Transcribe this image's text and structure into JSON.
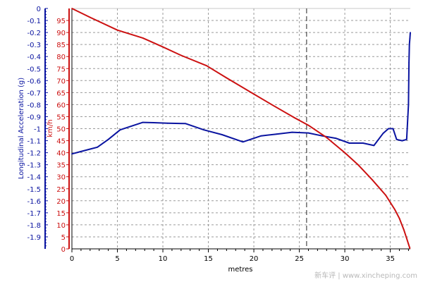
{
  "chart_data": {
    "type": "line",
    "xlabel": "metres",
    "x_ticks": [
      "0",
      "5",
      "10",
      "15",
      "20",
      "25",
      "30",
      "35"
    ],
    "xlim": [
      0,
      37.2
    ],
    "left_axis": {
      "label": "Longitudinal Acceleration (g)",
      "ylim": [
        -2.0,
        0
      ],
      "ticks": [
        "0",
        "-0.1",
        "-0.2",
        "-0.3",
        "-0.4",
        "-0.5",
        "-0.6",
        "-0.7",
        "-0.8",
        "-0.9",
        "-1",
        "-1.1",
        "-1.2",
        "-1.3",
        "-1.4",
        "-1.5",
        "-1.6",
        "-1.7",
        "-1.8",
        "-1.9"
      ]
    },
    "right_axis": {
      "label": "km/h",
      "ylim": [
        0,
        100
      ],
      "ticks": [
        "95",
        "90",
        "85",
        "80",
        "75",
        "70",
        "65",
        "60",
        "55",
        "50",
        "45",
        "40",
        "35",
        "30",
        "25",
        "20",
        "15",
        "10",
        "5",
        "0"
      ]
    },
    "grid": true,
    "marker_x": 25.8,
    "series": [
      {
        "axis": "left",
        "color": "#0a14a0",
        "x": [
          0,
          1,
          2.8,
          4,
          5.3,
          6.5,
          7.8,
          9,
          10.5,
          12.5,
          14.5,
          16.5,
          18.8,
          20.8,
          22.5,
          24.2,
          26,
          27.5,
          29,
          30.5,
          32,
          33.2,
          34.2,
          34.8,
          35.3,
          35.7,
          36.3,
          36.8,
          37,
          37.05,
          37.1,
          37.15,
          37.2
        ],
        "values": [
          -1.21,
          -1.19,
          -1.154,
          -1.09,
          -1.01,
          -0.98,
          -0.948,
          -0.95,
          -0.955,
          -0.958,
          -1.01,
          -1.05,
          -1.11,
          -1.06,
          -1.045,
          -1.03,
          -1.036,
          -1.06,
          -1.08,
          -1.12,
          -1.12,
          -1.14,
          -1.04,
          -1.0,
          -1.0,
          -1.09,
          -1.1,
          -1.09,
          -0.8,
          -0.45,
          -0.3,
          -0.25,
          -0.2
        ]
      },
      {
        "axis": "right",
        "color": "#cc1111",
        "x": [
          0,
          2,
          5,
          7.8,
          10,
          12,
          14.8,
          17,
          19.5,
          22,
          24.5,
          26,
          28,
          30,
          31.5,
          33,
          34.5,
          35.5,
          36,
          36.5,
          36.8,
          37,
          37.15
        ],
        "values": [
          100,
          96.3,
          91,
          87.7,
          84,
          80.5,
          76.2,
          71.1,
          65.5,
          59.9,
          54.5,
          51.4,
          46.3,
          40,
          34.8,
          28.8,
          22.3,
          16.3,
          12.7,
          7.8,
          4.4,
          2,
          0.2
        ]
      }
    ]
  },
  "watermark": "新车评 | www.xincheping.com"
}
